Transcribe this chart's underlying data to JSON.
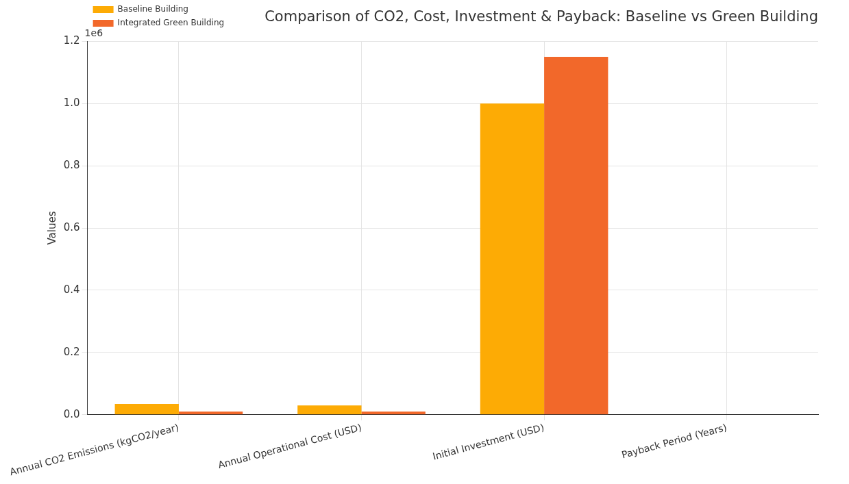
{
  "chart_data": {
    "type": "bar",
    "title": "Comparison of CO2, Cost, Investment & Payback: Baseline vs Green Building",
    "ylabel": "Values",
    "annotations": [
      "1e6"
    ],
    "categories": [
      "Annual CO2 Emissions (kgCO2/year)",
      "Annual Operational Cost (USD)",
      "Initial Investment (USD)",
      "Payback Period (Years)"
    ],
    "series": [
      {
        "name": "Baseline Building",
        "color": "#fdab05",
        "values": [
          0.035,
          0.03,
          1.0,
          0
        ]
      },
      {
        "name": "Integrated Green Building",
        "color": "#f2682a",
        "values": [
          0.01,
          0.01,
          1.15,
          0
        ]
      }
    ],
    "ylim": [
      0,
      1.2
    ],
    "yticks": [
      {
        "value": 0,
        "label": "0.0"
      },
      {
        "value": 0.2,
        "label": "0.2"
      },
      {
        "value": 0.4,
        "label": "0.4"
      },
      {
        "value": 0.6,
        "label": "0.6"
      },
      {
        "value": 0.8,
        "label": "0.8"
      },
      {
        "value": 1.0,
        "label": "1.0"
      },
      {
        "value": 1.2,
        "label": "1.2"
      }
    ],
    "grid": true,
    "legend": "top left"
  }
}
